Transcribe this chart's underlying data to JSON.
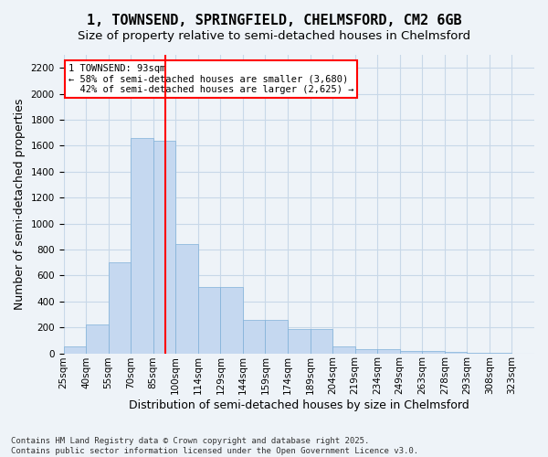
{
  "title": "1, TOWNSEND, SPRINGFIELD, CHELMSFORD, CM2 6GB",
  "subtitle": "Size of property relative to semi-detached houses in Chelmsford",
  "xlabel": "Distribution of semi-detached houses by size in Chelmsford",
  "ylabel": "Number of semi-detached properties",
  "footnote1": "Contains HM Land Registry data © Crown copyright and database right 2025.",
  "footnote2": "Contains public sector information licensed under the Open Government Licence v3.0.",
  "bin_labels": [
    "25sqm",
    "40sqm",
    "55sqm",
    "70sqm",
    "85sqm",
    "100sqm",
    "114sqm",
    "129sqm",
    "144sqm",
    "159sqm",
    "174sqm",
    "189sqm",
    "204sqm",
    "219sqm",
    "234sqm",
    "249sqm",
    "263sqm",
    "278sqm",
    "293sqm",
    "308sqm",
    "323sqm"
  ],
  "bar_values": [
    50,
    220,
    700,
    1660,
    1640,
    840,
    510,
    510,
    260,
    260,
    185,
    185,
    55,
    35,
    30,
    20,
    15,
    10,
    5,
    5,
    0
  ],
  "bar_color": "#c5d8f0",
  "bar_edge_color": "#7fb0d8",
  "grid_color": "#c8d8e8",
  "bg_color": "#eef3f8",
  "property_size": 93,
  "property_label": "1 TOWNSEND: 93sqm",
  "pct_smaller": 58,
  "n_smaller": 3680,
  "pct_larger": 42,
  "n_larger": 2625,
  "vline_color": "red",
  "annotation_box_color": "red",
  "ylim": [
    0,
    2300
  ],
  "yticks": [
    0,
    200,
    400,
    600,
    800,
    1000,
    1200,
    1400,
    1600,
    1800,
    2000,
    2200
  ],
  "title_fontsize": 11,
  "subtitle_fontsize": 9.5,
  "axis_label_fontsize": 9,
  "tick_fontsize": 7.5,
  "annotation_fontsize": 7.5,
  "footnote_fontsize": 6.5
}
